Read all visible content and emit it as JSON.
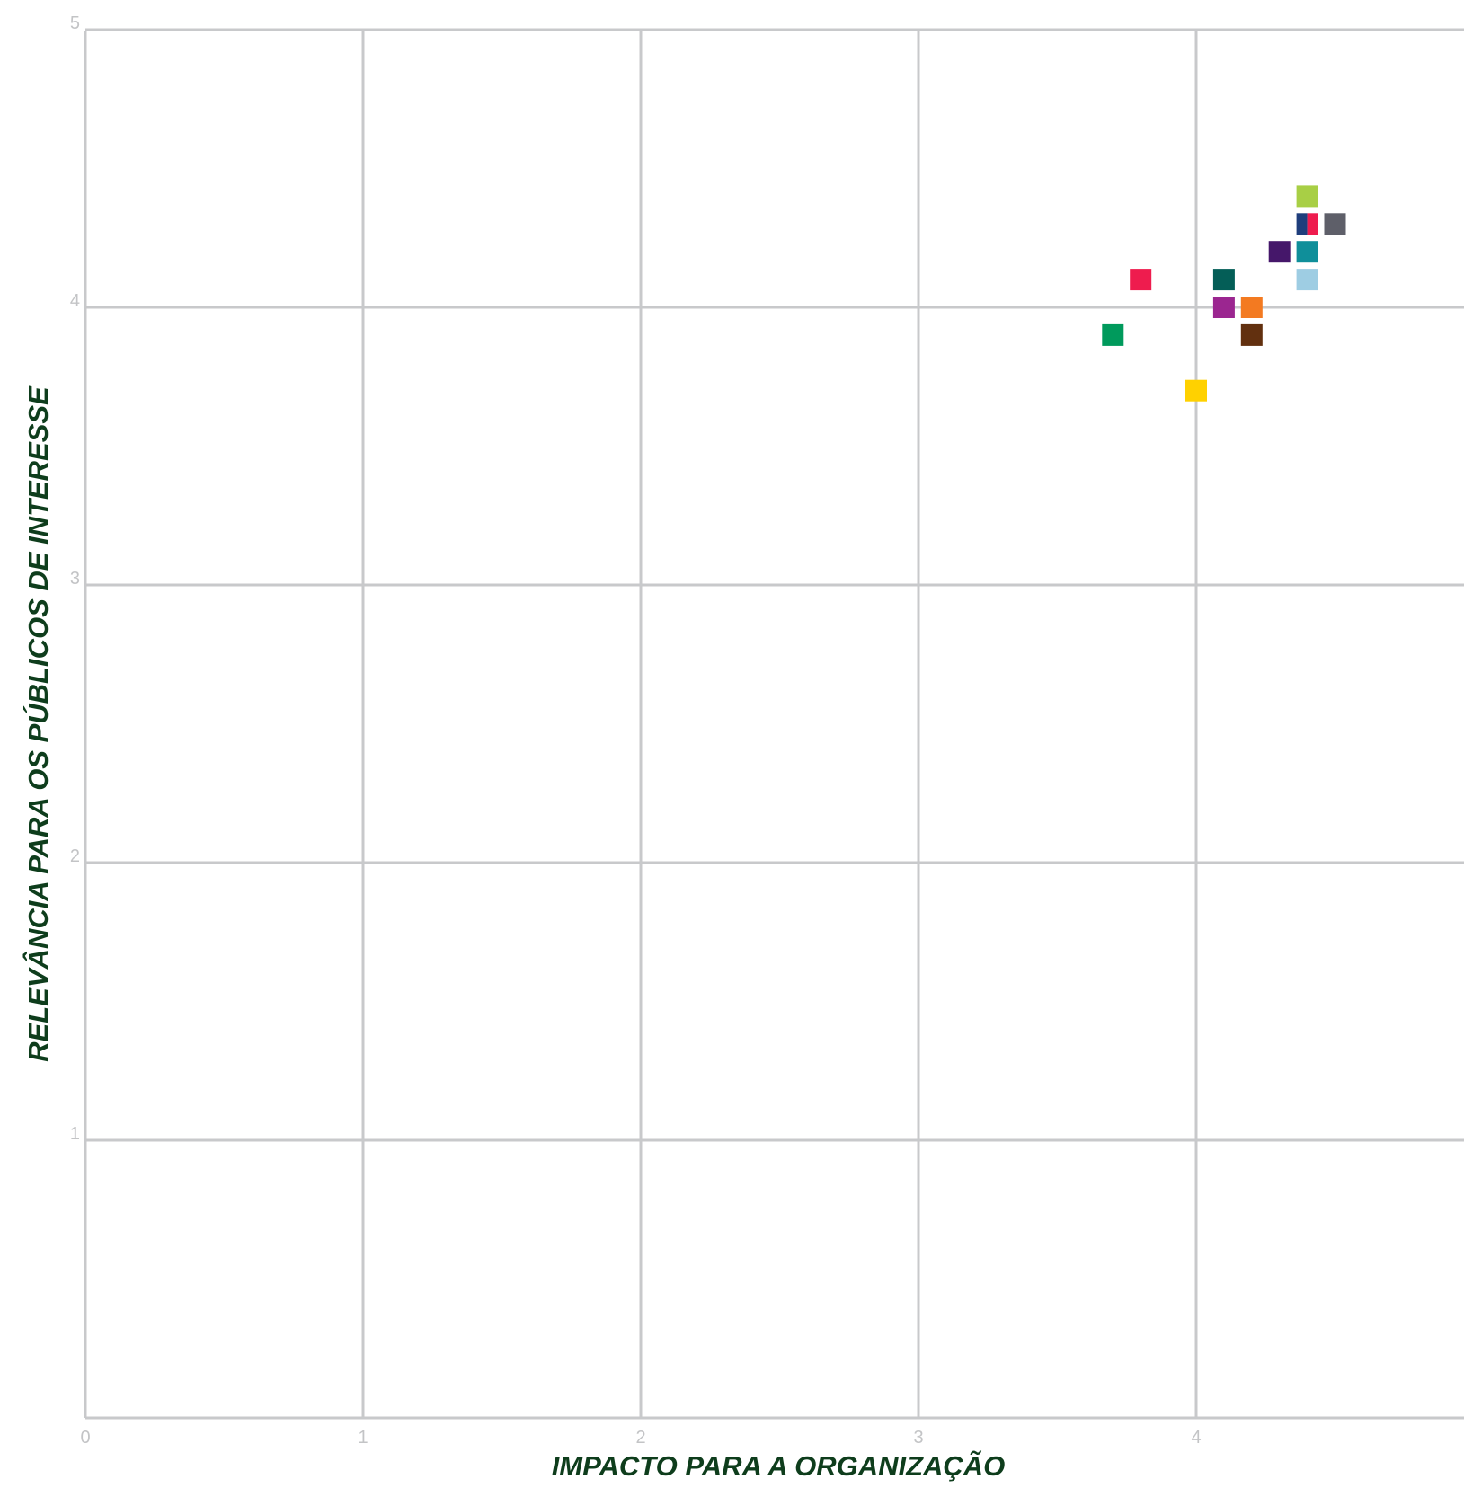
{
  "chart_data": {
    "type": "scatter",
    "title": "",
    "xlabel": "IMPACTO PARA A ORGANIZAÇÃO",
    "ylabel": "RELEVÂNCIA PARA OS PÚBLICOS DE INTERESSE",
    "xlim": [
      0,
      5
    ],
    "ylim": [
      0,
      5
    ],
    "x_ticks": [
      "0",
      "1",
      "2",
      "3",
      "4"
    ],
    "y_ticks": [
      "1",
      "2",
      "3",
      "4",
      "5"
    ],
    "grid": true,
    "marker": "square",
    "points": [
      {
        "x": 4.4,
        "y": 4.4,
        "color": "#a8cf45"
      },
      {
        "x": 4.4,
        "y": 4.3,
        "color": "#1f3e7c",
        "half": "left"
      },
      {
        "x": 4.4,
        "y": 4.3,
        "color": "#ee1c4e",
        "half": "right"
      },
      {
        "x": 4.5,
        "y": 4.3,
        "color": "#5e5f69"
      },
      {
        "x": 4.3,
        "y": 4.2,
        "color": "#45176a"
      },
      {
        "x": 4.4,
        "y": 4.2,
        "color": "#0f8f9a"
      },
      {
        "x": 4.4,
        "y": 4.1,
        "color": "#9ecde3"
      },
      {
        "x": 3.8,
        "y": 4.1,
        "color": "#ee1c4e"
      },
      {
        "x": 4.1,
        "y": 4.1,
        "color": "#045e57"
      },
      {
        "x": 4.1,
        "y": 4.0,
        "color": "#9b2690"
      },
      {
        "x": 4.2,
        "y": 4.0,
        "color": "#f37a21"
      },
      {
        "x": 3.7,
        "y": 3.9,
        "color": "#009a5c"
      },
      {
        "x": 4.2,
        "y": 3.9,
        "color": "#62300f"
      },
      {
        "x": 4.0,
        "y": 3.7,
        "color": "#ffd100"
      }
    ]
  }
}
